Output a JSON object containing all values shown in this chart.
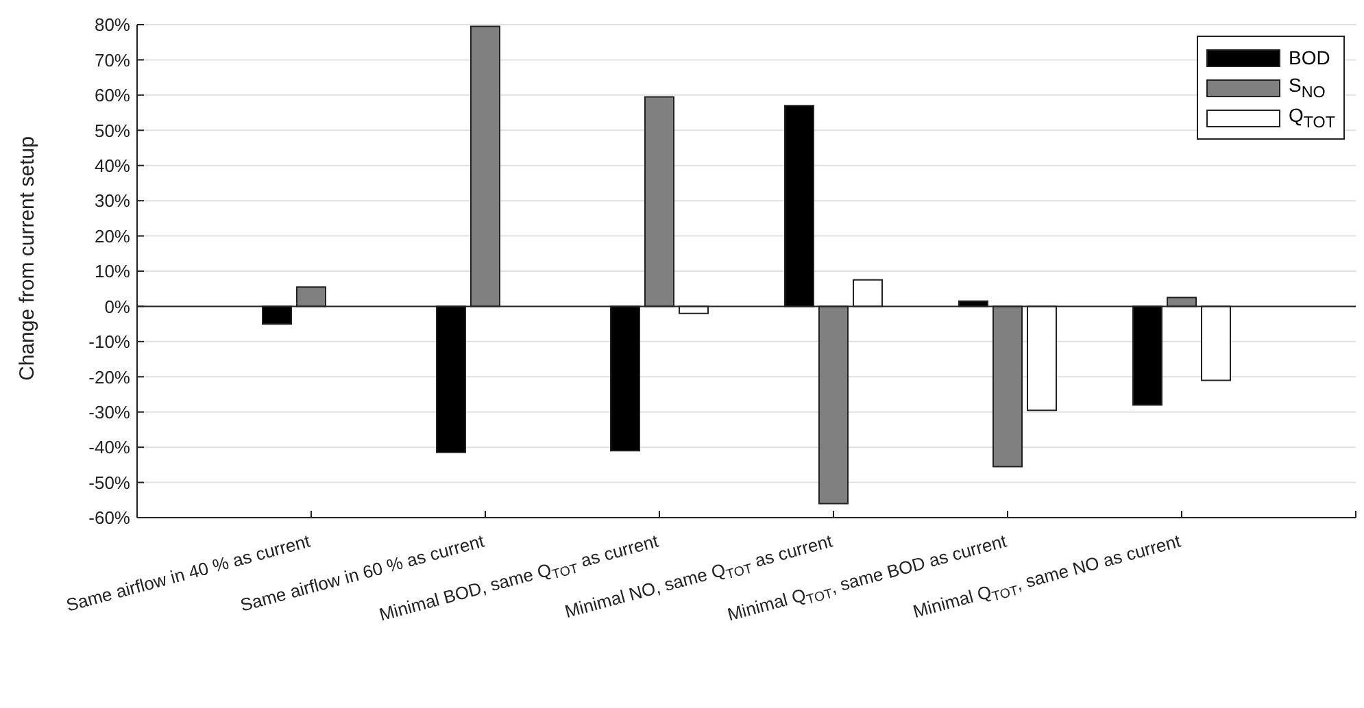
{
  "chart_data": {
    "type": "bar",
    "ylabel": "Change from current setup",
    "categories": [
      "Same airflow in 40 % as current",
      "Same airflow in 60 % as current",
      "Minimal BOD, same Q$_{TOT}$ as current",
      "Minimal NO, same Q$_{TOT}$ as current",
      "Minimal Q$_{TOT}$, same BOD as current",
      "Minimal Q$_{TOT}$, same NO as current"
    ],
    "series": [
      {
        "name": "BOD",
        "color": "#000000",
        "values": [
          -5,
          -41.5,
          -41,
          57,
          1.5,
          -28
        ]
      },
      {
        "name": "S$_{NO}$",
        "color": "#808080",
        "values": [
          5.5,
          79.5,
          59.5,
          -56,
          -45.5,
          2.5
        ]
      },
      {
        "name": "Q$_{TOT}$",
        "color": "#ffffff",
        "values": [
          null,
          null,
          -2,
          7.5,
          -29.5,
          -21
        ]
      }
    ],
    "ylim": [
      -60,
      80
    ],
    "yticks": [
      {
        "value": -60,
        "label": "-60%"
      },
      {
        "value": -50,
        "label": "-50%"
      },
      {
        "value": -40,
        "label": "-40%"
      },
      {
        "value": -30,
        "label": "-30%"
      },
      {
        "value": -20,
        "label": "-20%"
      },
      {
        "value": -10,
        "label": "-10%"
      },
      {
        "value": 0,
        "label": "0%"
      },
      {
        "value": 10,
        "label": "10%"
      },
      {
        "value": 20,
        "label": "20%"
      },
      {
        "value": 30,
        "label": "30%"
      },
      {
        "value": 40,
        "label": "40%"
      },
      {
        "value": 50,
        "label": "50%"
      },
      {
        "value": 60,
        "label": "60%"
      },
      {
        "value": 70,
        "label": "70%"
      },
      {
        "value": 80,
        "label": "80%"
      }
    ],
    "grid": "y",
    "legend": "top right"
  }
}
